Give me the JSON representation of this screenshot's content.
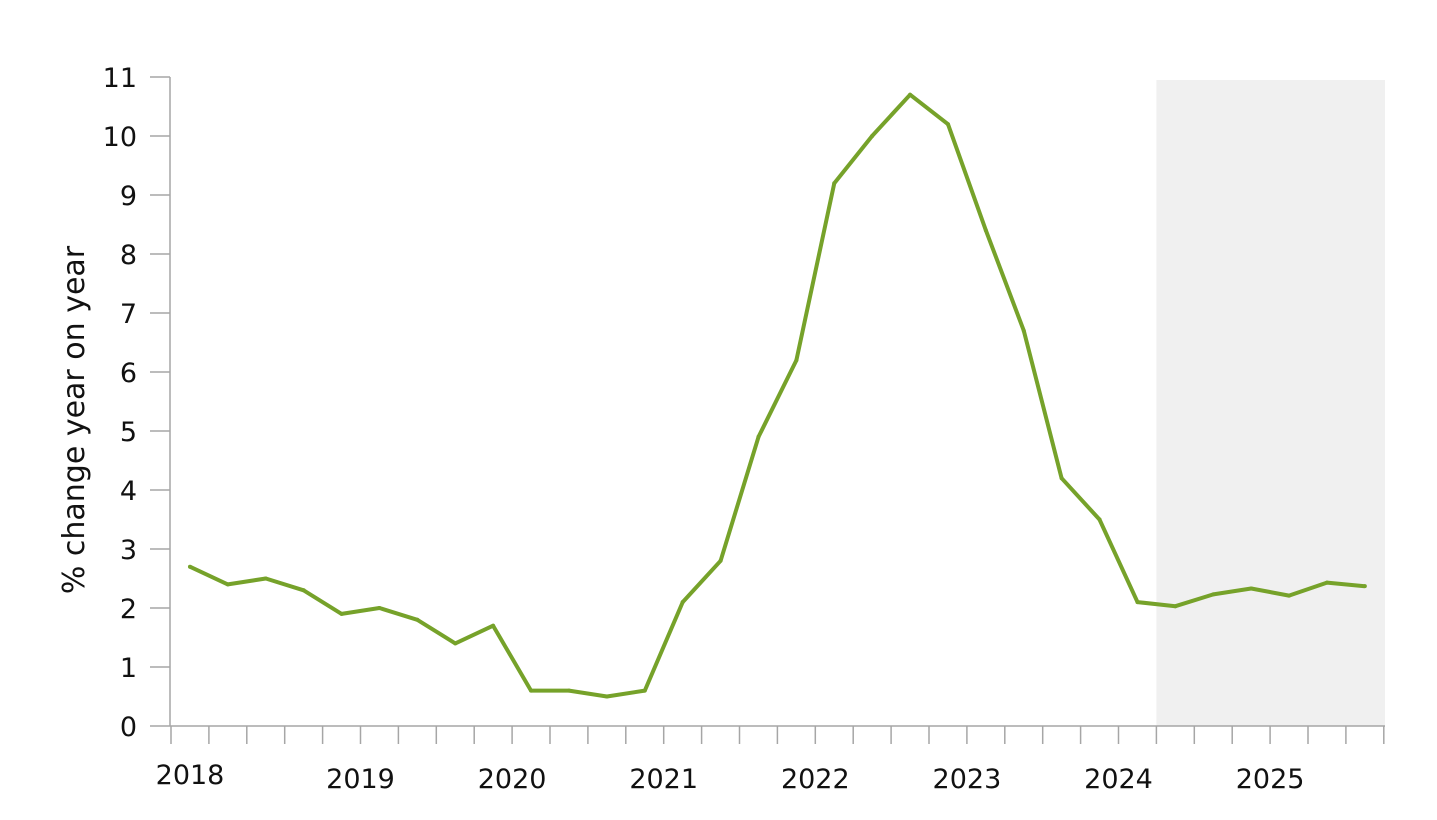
{
  "chart_data": {
    "type": "line",
    "title": "",
    "xlabel": "",
    "ylabel": "% change year on year",
    "ylim": [
      0,
      11
    ],
    "yticks": [
      0,
      1,
      2,
      3,
      4,
      5,
      6,
      7,
      8,
      9,
      10,
      11
    ],
    "xtick_labels": [
      "2018",
      "2019",
      "2020",
      "2021",
      "2022",
      "2023",
      "2024",
      "2025"
    ],
    "grid": false,
    "legend": "none",
    "shaded_region": {
      "label": "",
      "x_start": "2024 Q3",
      "x_end": "2025 Q4"
    },
    "x": [
      "2018 Q1",
      "2018 Q2",
      "2018 Q3",
      "2018 Q4",
      "2019 Q1",
      "2019 Q2",
      "2019 Q3",
      "2019 Q4",
      "2020 Q1",
      "2020 Q2",
      "2020 Q3",
      "2020 Q4",
      "2021 Q1",
      "2021 Q2",
      "2021 Q3",
      "2021 Q4",
      "2022 Q1",
      "2022 Q2",
      "2022 Q3",
      "2022 Q4",
      "2023 Q1",
      "2023 Q2",
      "2023 Q3",
      "2023 Q4",
      "2024 Q1",
      "2024 Q2",
      "2024 Q3",
      "2024 Q4",
      "2025 Q1",
      "2025 Q2",
      "2025 Q3",
      "2025 Q4"
    ],
    "series": [
      {
        "values": [
          2.7,
          2.4,
          2.5,
          2.3,
          1.9,
          2.0,
          1.8,
          1.4,
          1.7,
          0.6,
          0.6,
          0.5,
          0.6,
          2.1,
          2.8,
          4.9,
          6.2,
          9.2,
          10.0,
          10.7,
          10.2,
          8.4,
          6.7,
          4.2,
          3.5,
          2.1,
          2.03,
          2.23,
          2.33,
          2.21,
          2.43,
          2.37
        ],
        "color": "#76a22a"
      }
    ],
    "colors": {
      "line": "#76a22a",
      "axis": "#a6a6a6",
      "shade": "#f0f0f0",
      "text": "#111111"
    }
  }
}
